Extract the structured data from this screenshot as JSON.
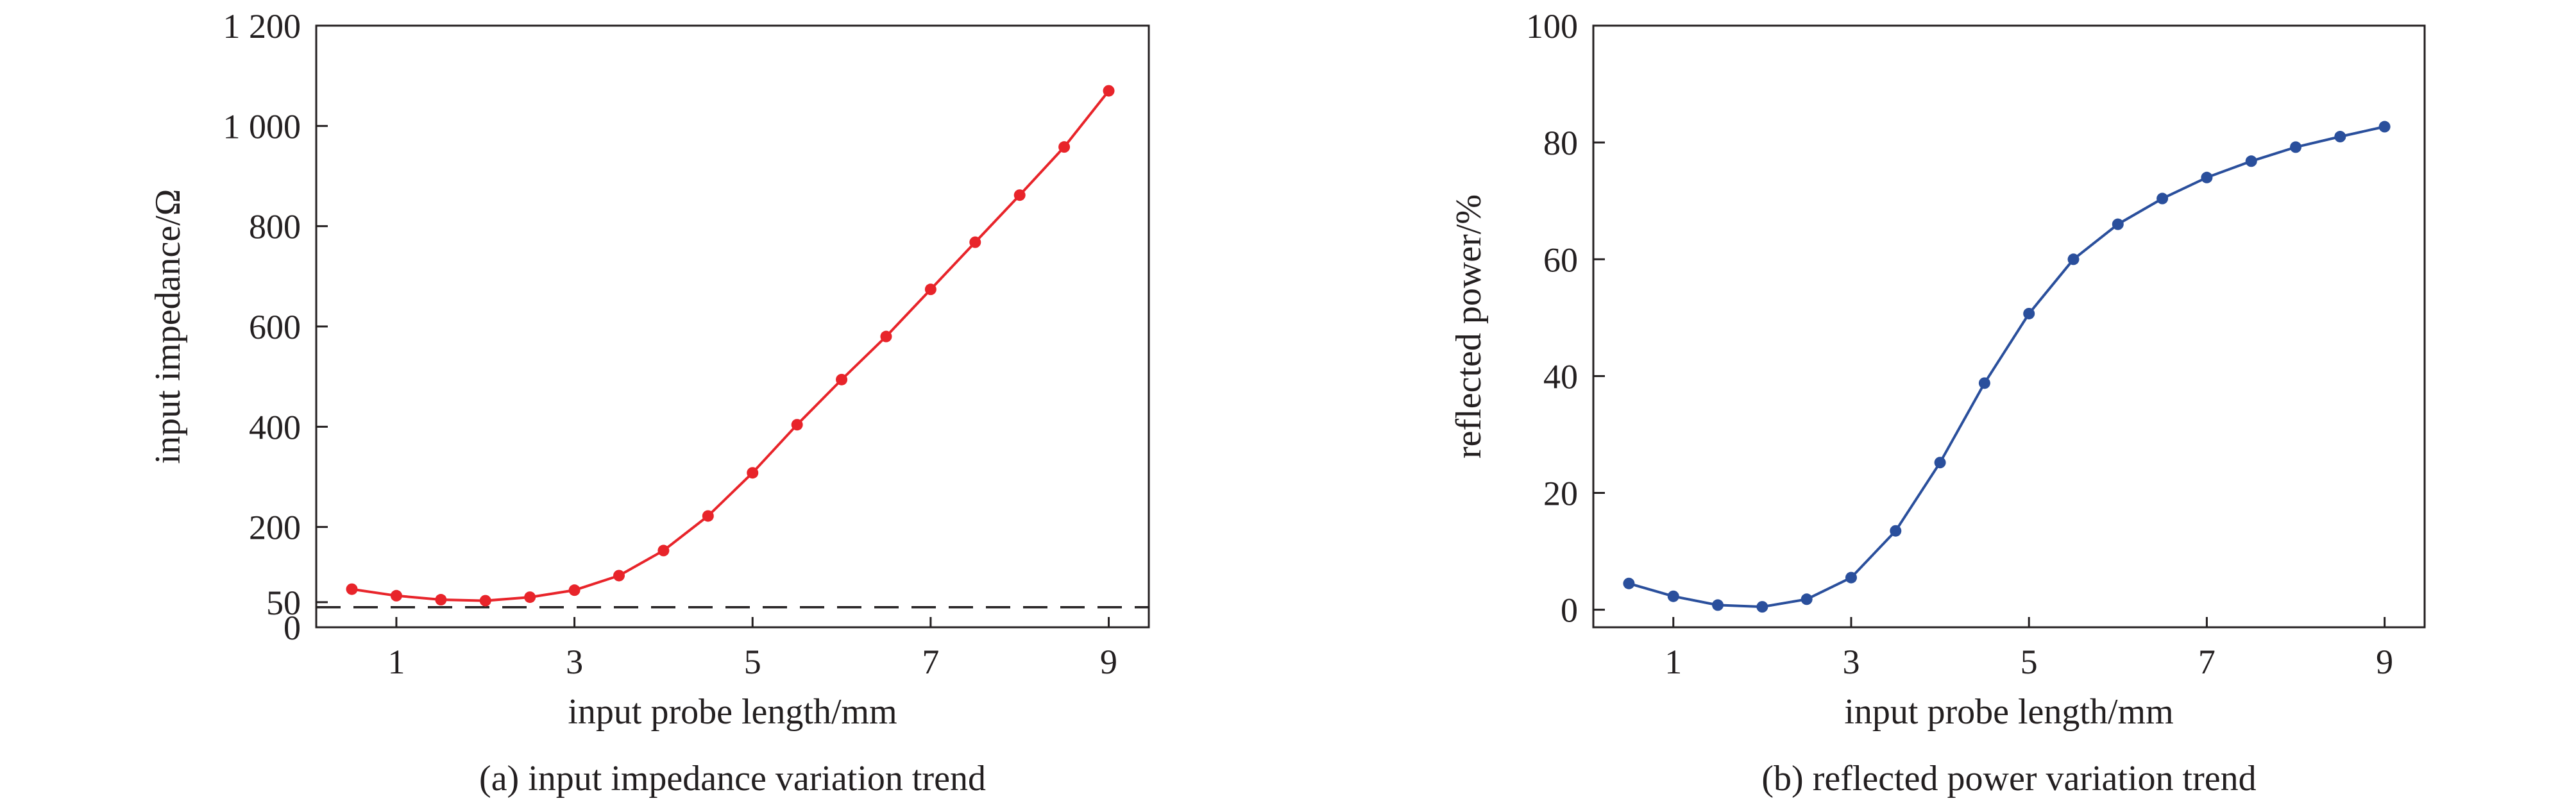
{
  "chart_data": [
    {
      "type": "line",
      "caption": "(a) input impedance variation trend",
      "xlabel": "input probe length/mm",
      "ylabel": "input impedance/Ω",
      "xlim": [
        0.1,
        9.45
      ],
      "ylim": [
        0,
        1200
      ],
      "xticks": [
        1,
        3,
        5,
        7,
        9
      ],
      "xtick_labels": [
        "1",
        "3",
        "5",
        "7",
        "9"
      ],
      "yticks": [
        0,
        50,
        200,
        400,
        600,
        800,
        1000,
        1200
      ],
      "ytick_labels": [
        "0",
        "50",
        "200",
        "400",
        "600",
        "800",
        "1 000",
        "1 200"
      ],
      "grid": false,
      "reference_line": {
        "y": 40,
        "style": "dashed"
      },
      "series": [
        {
          "color": "#e8242a",
          "x": [
            0.5,
            1.0,
            1.5,
            2.0,
            2.5,
            3.0,
            3.5,
            4.0,
            4.5,
            5.0,
            5.5,
            6.0,
            6.5,
            7.0,
            7.5,
            8.0,
            8.5,
            9.0
          ],
          "y": [
            76,
            63,
            55,
            53,
            60,
            74,
            103,
            153,
            222,
            308,
            404,
            494,
            580,
            674,
            768,
            862,
            958,
            1070
          ]
        }
      ]
    },
    {
      "type": "line",
      "caption": "(b) reflected power variation trend",
      "xlabel": "input probe length/mm",
      "ylabel": "reflected power/%",
      "xlim": [
        0.1,
        9.45
      ],
      "ylim": [
        -3,
        100
      ],
      "xticks": [
        1,
        3,
        5,
        7,
        9
      ],
      "xtick_labels": [
        "1",
        "3",
        "5",
        "7",
        "9"
      ],
      "yticks": [
        0,
        20,
        40,
        60,
        80,
        100
      ],
      "ytick_labels": [
        "0",
        "20",
        "40",
        "60",
        "80",
        "100"
      ],
      "grid": false,
      "series": [
        {
          "color": "#2a4f9c",
          "x": [
            0.5,
            1.0,
            1.5,
            2.0,
            2.5,
            3.0,
            3.5,
            4.0,
            4.5,
            5.0,
            5.5,
            6.0,
            6.5,
            7.0,
            7.5,
            8.0,
            8.5,
            9.0
          ],
          "y": [
            4.5,
            2.3,
            0.8,
            0.5,
            1.8,
            5.5,
            13.5,
            25.2,
            38.8,
            50.7,
            60.0,
            66.0,
            70.4,
            74.0,
            76.8,
            79.2,
            81.0,
            82.7
          ]
        }
      ]
    }
  ]
}
